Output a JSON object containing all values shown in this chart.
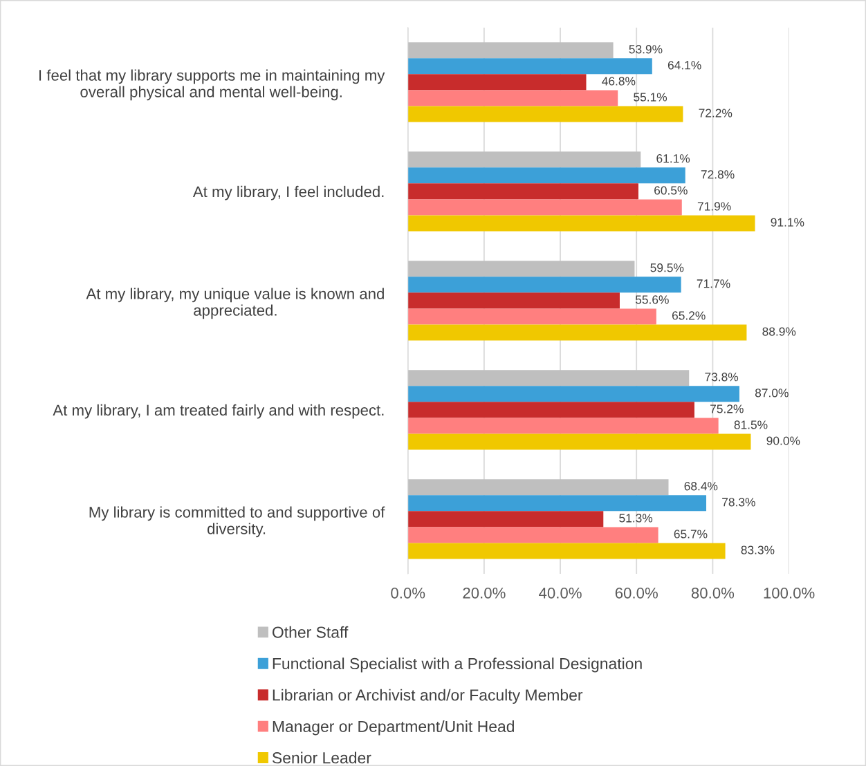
{
  "chart_data": {
    "type": "bar",
    "orientation": "horizontal",
    "categories": [
      "I feel that my library supports me in maintaining my\noverall physical and mental well-being.",
      "At my library, I feel included.",
      "At my library, my unique value is known and\nappreciated.",
      "At my library, I am treated fairly and with respect.",
      "My library is committed to and supportive of\ndiversity."
    ],
    "series": [
      {
        "name": "Other Staff",
        "color": "#bfbfbf",
        "values": [
          53.9,
          61.1,
          59.5,
          73.8,
          68.4
        ],
        "value_labels": [
          "53.9%",
          "61.1%",
          "59.5%",
          "73.8%",
          "68.4%"
        ]
      },
      {
        "name": "Functional Specialist with a Professional Designation",
        "color": "#3ca0d8",
        "values": [
          64.1,
          72.8,
          71.7,
          87.0,
          78.3
        ],
        "value_labels": [
          "64.1%",
          "72.8%",
          "71.7%",
          "87.0%",
          "78.3%"
        ]
      },
      {
        "name": "Librarian or Archivist and/or Faculty Member",
        "color": "#c82c2c",
        "values": [
          46.8,
          60.5,
          55.6,
          75.2,
          51.3
        ],
        "value_labels": [
          "46.8%",
          "60.5%",
          "55.6%",
          "75.2%",
          "51.3%"
        ]
      },
      {
        "name": "Manager or Department/Unit Head",
        "color": "#ff7f7f",
        "values": [
          55.1,
          71.9,
          65.2,
          81.5,
          65.7
        ],
        "value_labels": [
          "55.1%",
          "71.9%",
          "65.2%",
          "81.5%",
          "65.7%"
        ]
      },
      {
        "name": "Senior Leader",
        "color": "#f0c800",
        "values": [
          72.2,
          91.1,
          88.9,
          90.0,
          83.3
        ],
        "value_labels": [
          "72.2%",
          "91.1%",
          "88.9%",
          "90.0%",
          "83.3%"
        ]
      }
    ],
    "xlim": [
      0,
      100
    ],
    "xticks": [
      {
        "value": 0,
        "label": "0.0%"
      },
      {
        "value": 20,
        "label": "20.0%"
      },
      {
        "value": 40,
        "label": "40.0%"
      },
      {
        "value": 60,
        "label": "60.0%"
      },
      {
        "value": 80,
        "label": "80.0%"
      },
      {
        "value": 100,
        "label": "100.0%"
      }
    ],
    "grid": "x",
    "legend": "bottom"
  }
}
